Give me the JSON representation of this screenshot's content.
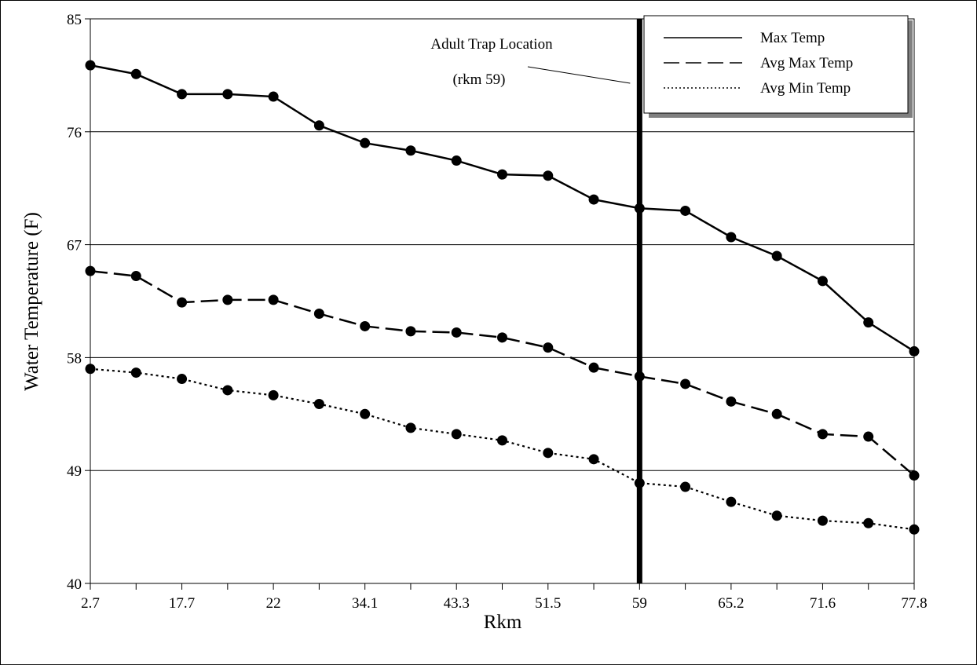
{
  "chart_data": {
    "type": "line",
    "xlabel": "Rkm",
    "ylabel": "Water Temperature (F)",
    "ylim": [
      40,
      85
    ],
    "yticks": [
      40,
      49,
      58,
      67,
      76,
      85
    ],
    "grid": true,
    "legend_position": "top-right",
    "categories": [
      "2.7",
      "",
      "17.7",
      "",
      "22",
      "",
      "34.1",
      "",
      "43.3",
      "",
      "51.5",
      "",
      "59",
      "",
      "65.2",
      "",
      "71.6",
      "",
      "77.8"
    ],
    "series": [
      {
        "name": "Max Temp",
        "dash": "solid",
        "values": [
          81.3,
          80.6,
          79.0,
          79.0,
          78.8,
          76.5,
          75.1,
          74.5,
          73.7,
          72.6,
          72.5,
          70.6,
          69.9,
          69.7,
          67.6,
          66.1,
          64.1,
          60.8,
          58.5
        ]
      },
      {
        "name": "Avg Max Temp",
        "dash": "dashed",
        "values": [
          64.9,
          64.5,
          62.4,
          62.6,
          62.6,
          61.5,
          60.5,
          60.1,
          60.0,
          59.6,
          58.8,
          57.2,
          56.5,
          55.9,
          54.5,
          53.5,
          51.9,
          51.7,
          48.6
        ]
      },
      {
        "name": "Avg Min Temp",
        "dash": "dotted",
        "values": [
          57.1,
          56.8,
          56.3,
          55.4,
          55.0,
          54.3,
          53.5,
          52.4,
          51.9,
          51.4,
          50.4,
          49.9,
          48.0,
          47.7,
          46.5,
          45.4,
          45.0,
          44.8,
          44.3
        ]
      }
    ],
    "annotations": [
      {
        "text": "Adult Trap Location",
        "line2": "(rkm 59)",
        "x_category_index": 12
      }
    ]
  }
}
